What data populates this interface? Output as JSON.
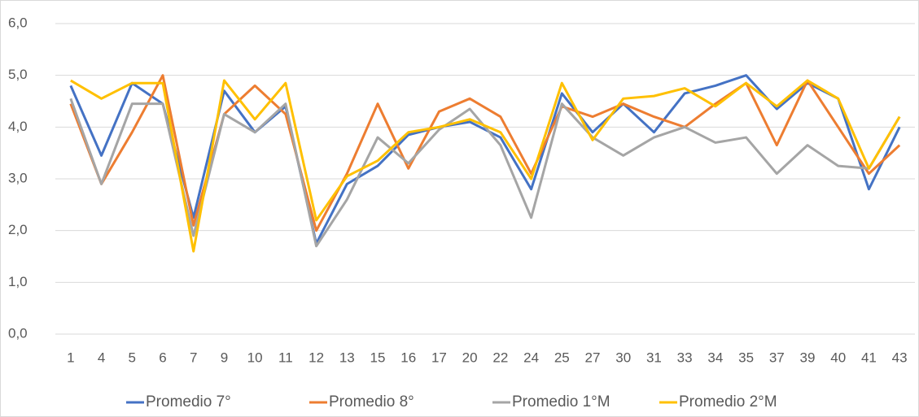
{
  "chart_data": {
    "type": "line",
    "categories": [
      "1",
      "4",
      "5",
      "6",
      "7",
      "9",
      "10",
      "11",
      "12",
      "13",
      "15",
      "16",
      "17",
      "20",
      "22",
      "24",
      "25",
      "27",
      "30",
      "31",
      "33",
      "34",
      "35",
      "37",
      "39",
      "40",
      "41",
      "43"
    ],
    "series": [
      {
        "name": "Promedio 7°",
        "color": "#4472c4",
        "values": [
          4.8,
          3.45,
          4.85,
          4.45,
          2.25,
          4.7,
          3.9,
          4.4,
          1.75,
          2.9,
          3.25,
          3.85,
          4.0,
          4.1,
          3.8,
          2.8,
          4.65,
          3.9,
          4.45,
          3.9,
          4.65,
          4.8,
          5.0,
          4.35,
          4.85,
          4.55,
          2.8,
          4.0
        ]
      },
      {
        "name": "Promedio 8°",
        "color": "#ed7d31",
        "values": [
          4.45,
          2.9,
          3.9,
          5.0,
          2.1,
          4.25,
          4.8,
          4.25,
          2.0,
          3.1,
          4.45,
          3.2,
          4.3,
          4.55,
          4.2,
          3.1,
          4.4,
          4.2,
          4.45,
          4.2,
          4.0,
          4.45,
          4.85,
          3.65,
          4.9,
          4.0,
          3.1,
          3.65
        ]
      },
      {
        "name": "Promedio 1°M",
        "color": "#a5a5a5",
        "values": [
          4.55,
          2.9,
          4.45,
          4.45,
          1.9,
          4.25,
          3.9,
          4.45,
          1.7,
          2.6,
          3.8,
          3.3,
          3.95,
          4.35,
          3.65,
          2.25,
          4.45,
          3.8,
          3.45,
          3.8,
          4.0,
          3.7,
          3.8,
          3.1,
          3.65,
          3.25,
          3.2,
          4.2
        ]
      },
      {
        "name": "Promedio 2°M",
        "color": "#ffc000",
        "values": [
          4.9,
          4.55,
          4.85,
          4.85,
          1.6,
          4.9,
          4.15,
          4.85,
          2.2,
          3.05,
          3.35,
          3.9,
          4.0,
          4.15,
          3.9,
          3.0,
          4.85,
          3.75,
          4.55,
          4.6,
          4.75,
          4.4,
          4.85,
          4.4,
          4.9,
          4.55,
          3.2,
          4.2
        ]
      }
    ],
    "ylim": [
      0,
      6
    ],
    "yticks": [
      {
        "value": 0,
        "label": "0,0"
      },
      {
        "value": 1,
        "label": "1,0"
      },
      {
        "value": 2,
        "label": "2,0"
      },
      {
        "value": 3,
        "label": "3,0"
      },
      {
        "value": 4,
        "label": "4,0"
      },
      {
        "value": 5,
        "label": "5,0"
      },
      {
        "value": 6,
        "label": "6,0"
      }
    ],
    "grid": true,
    "legend": "bottom"
  }
}
